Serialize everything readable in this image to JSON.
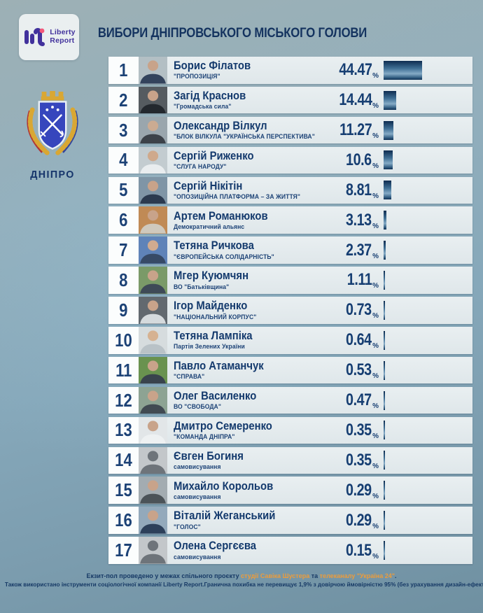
{
  "meta": {
    "brand_line1": "Liberty",
    "brand_line2": "Report",
    "title": "ВИБОРИ ДНІПРОВСЬКОГО МІСЬКОГО ГОЛОВИ",
    "city_label": "ДНІПРО",
    "percent_sign": "%"
  },
  "chart_data": {
    "type": "bar",
    "orientation": "horizontal",
    "title": "ВИБОРИ ДНІПРОВСЬКОГО МІСЬКОГО ГОЛОВИ",
    "value_suffix": "%",
    "xlim": [
      0,
      50
    ],
    "legend_position": "none",
    "grid": false,
    "categories": [
      "Борис Філатов",
      "Загід Краснов",
      "Олександр Вілкул",
      "Сергій Риженко",
      "Сергій Нікітін",
      "Артем Романюков",
      "Тетяна Ричкова",
      "Мгер Куюмчян",
      "Ігор Майденко",
      "Тетяна Лампіка",
      "Павло Атаманчук",
      "Олег Василенко",
      "Дмитро Семеренко",
      "Євген Богиня",
      "Михайло Корольов",
      "Віталій Жеганський",
      "Олена Сергєєва"
    ],
    "values": [
      44.47,
      14.44,
      11.27,
      10.6,
      8.81,
      3.13,
      2.37,
      1.11,
      0.73,
      0.64,
      0.53,
      0.47,
      0.35,
      0.35,
      0.29,
      0.29,
      0.15
    ],
    "parties": [
      "\"ПРОПОЗИЦІЯ\"",
      "\"Громадська сила\"",
      "\"БЛОК ВІЛКУЛА \"УКРАЇНСЬКА ПЕРСПЕКТИВА\"",
      "\"СЛУГА НАРОДУ\"",
      "\"ОПОЗИЦІЙНА ПЛАТФОРМА – ЗА ЖИТТЯ\"",
      "Демократичний альянс",
      "\"ЄВРОПЕЙСЬКА СОЛІДАРНІСТЬ\"",
      "ВО \"Батьківщина\"",
      "\"НАЦІОНАЛЬНИЙ КОРПУС\"",
      "Партія Зелених України",
      "\"СПРАВА\"",
      "ВО \"СВОБОДА\"",
      "\"КОМАНДА ДНІПРА\"",
      "самовисування",
      "самовисування",
      "\"ГОЛОС\"",
      "самовисування"
    ]
  },
  "rows": [
    {
      "rank": "1",
      "name": "Борис Філатов",
      "party": "\"ПРОПОЗИЦІЯ\"",
      "pct": "44.47",
      "value": 44.47,
      "photo": {
        "bg": "#b3bfc4",
        "body": "#33435c",
        "skin": "#c8a38a"
      }
    },
    {
      "rank": "2",
      "name": "Загід Краснов",
      "party": "\"Громадська сила\"",
      "pct": "14.44",
      "value": 14.44,
      "photo": {
        "bg": "#555b60",
        "body": "#23282e",
        "skin": "#c8a38a"
      }
    },
    {
      "rank": "3",
      "name": "Олександр Вілкул",
      "party": "\"БЛОК ВІЛКУЛА \"УКРАЇНСЬКА ПЕРСПЕКТИВА\"",
      "pct": "11.27",
      "value": 11.27,
      "photo": {
        "bg": "#9aa6ad",
        "body": "#3c4249",
        "skin": "#cbab92"
      }
    },
    {
      "rank": "4",
      "name": "Сергій Риженко",
      "party": "\"СЛУГА НАРОДУ\"",
      "pct": "10.6",
      "value": 10.6,
      "photo": {
        "bg": "#c3ccd0",
        "body": "#e9edef",
        "skin": "#cfa98c"
      }
    },
    {
      "rank": "5",
      "name": "Сергій Нікітін",
      "party": "\"ОПОЗИЦІЙНА ПЛАТФОРМА – ЗА ЖИТТЯ\"",
      "pct": "8.81",
      "value": 8.81,
      "photo": {
        "bg": "#7f95a6",
        "body": "#2b3a4f",
        "skin": "#c8a38a"
      }
    },
    {
      "rank": "6",
      "name": "Артем Романюков",
      "party": "Демократичний альянс",
      "pct": "3.13",
      "value": 3.13,
      "photo": {
        "bg": "#c08a55",
        "body": "#cfc9bd",
        "skin": "#c8a38a"
      }
    },
    {
      "rank": "7",
      "name": "Тетяна Ричкова",
      "party": "\"ЄВРОПЕЙСЬКА СОЛІДАРНІСТЬ\"",
      "pct": "2.37",
      "value": 2.37,
      "photo": {
        "bg": "#5f83b8",
        "body": "#374a66",
        "skin": "#d0ab90"
      }
    },
    {
      "rank": "8",
      "name": "Мгер Куюмчян",
      "party": "ВО \"Батьківщина\"",
      "pct": "1.11",
      "value": 1.11,
      "photo": {
        "bg": "#7a9a68",
        "body": "#3e4a57",
        "skin": "#c8a38a"
      }
    },
    {
      "rank": "9",
      "name": "Ігор Майденко",
      "party": "\"НАЦІОНАЛЬНИЙ КОРПУС\"",
      "pct": "0.73",
      "value": 0.73,
      "photo": {
        "bg": "#62696f",
        "body": "#d5dadd",
        "skin": "#c8a38a"
      }
    },
    {
      "rank": "10",
      "name": "Тетяна Лампіка",
      "party": "Партія Зелених України",
      "pct": "0.64",
      "value": 0.64,
      "photo": {
        "bg": "#d6dcde",
        "body": "#b9c2c7",
        "skin": "#d6b292"
      }
    },
    {
      "rank": "11",
      "name": "Павло Атаманчук",
      "party": "\"СПРАВА\"",
      "pct": "0.53",
      "value": 0.53,
      "photo": {
        "bg": "#69924f",
        "body": "#39434d",
        "skin": "#c8a38a"
      }
    },
    {
      "rank": "12",
      "name": "Олег Василенко",
      "party": "ВО \"СВОБОДА\"",
      "pct": "0.47",
      "value": 0.47,
      "photo": {
        "bg": "#8da393",
        "body": "#414a52",
        "skin": "#c8a38a"
      }
    },
    {
      "rank": "13",
      "name": "Дмитро Семеренко",
      "party": "\"КОМАНДА ДНІПРА\"",
      "pct": "0.35",
      "value": 0.35,
      "photo": {
        "bg": "#e2e6e8",
        "body": "#eef1f2",
        "skin": "#c8a38a"
      }
    },
    {
      "rank": "14",
      "name": "Євген Богиня",
      "party": "самовисування",
      "pct": "0.35",
      "value": 0.35,
      "photo": {
        "bg": "#c3c7ca",
        "body": "#6e747a",
        "skin": "#6e747a"
      }
    },
    {
      "rank": "15",
      "name": "Михайло Корольов",
      "party": "самовисування",
      "pct": "0.29",
      "value": 0.29,
      "photo": {
        "bg": "#a3acb1",
        "body": "#4b5358",
        "skin": "#c8a38a"
      }
    },
    {
      "rank": "16",
      "name": "Віталій Жеганський",
      "party": "\"ГОЛОС\"",
      "pct": "0.29",
      "value": 0.29,
      "photo": {
        "bg": "#93a9bb",
        "body": "#2d405a",
        "skin": "#c8a38a"
      }
    },
    {
      "rank": "17",
      "name": "Олена Сергєєва",
      "party": "самовисування",
      "pct": "0.15",
      "value": 0.15,
      "photo": {
        "bg": "#c3c7ca",
        "body": "#6e747a",
        "skin": "#6e747a"
      }
    }
  ],
  "footer": {
    "line1_prefix": "Екзит-пол проведено у межах спільного проєкту ",
    "line1_link1": "студії Савіка Шустера",
    "line1_middle": " та ",
    "line1_link2": "телеканалу \"Україна 24\"",
    "line1_suffix": ".",
    "line2": "Також використано інструменти соціологічної компанії Liberty Report.Гранична похибка не перевищує 1,9% з довірчою ймовірністю 95% (без урахування дизайн-ефекту)."
  },
  "colors": {
    "accent_orange": "#ec9c3b",
    "navy_text": "#16356b",
    "row_background": "#e4ebed",
    "bar_dark": "#0e2c50",
    "bar_light": "#85abc6",
    "page_background": "#86a8ba",
    "brand_purple": "#41319c",
    "brand_pink": "#f4587a"
  }
}
